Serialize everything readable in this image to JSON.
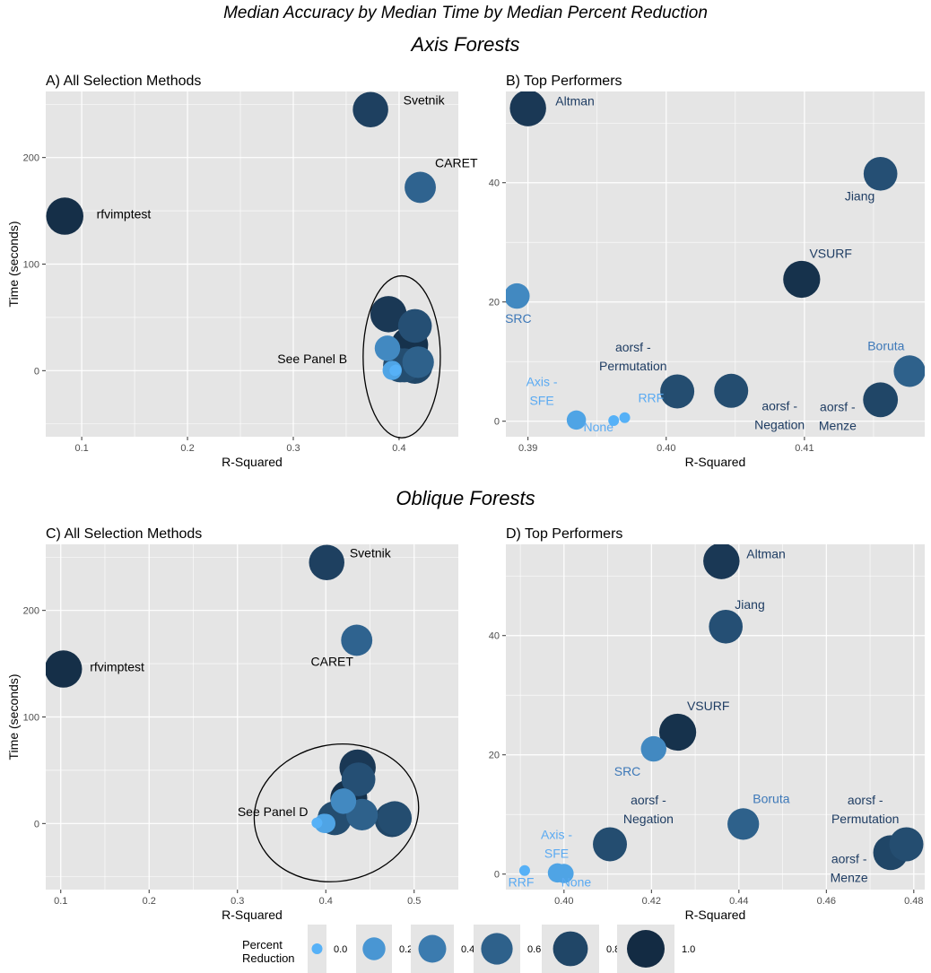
{
  "title": "Median Accuracy by Median Time by Median Percent Reduction",
  "sections": {
    "axis": "Axis Forests",
    "oblique": "Oblique Forests"
  },
  "legend": {
    "title_line1": "Percent",
    "title_line2": "Reduction",
    "labels": [
      "0.0",
      "0.2",
      "0.4",
      "0.6",
      "0.8",
      "1.0"
    ],
    "values": [
      0.0,
      0.2,
      0.4,
      0.6,
      0.8,
      1.0
    ]
  },
  "colors": {
    "panel_bg": "#e5e5e5",
    "grid": "#ffffff",
    "low": "#56b1f7",
    "high": "#132b43",
    "label_dark": "#1f3d63",
    "label_light": "#5aaaf2"
  },
  "chart_data": [
    {
      "id": "A",
      "type": "scatter",
      "title": "A) All Selection Methods",
      "xlabel": "R-Squared",
      "ylabel": "Time (seconds)",
      "xlim": [
        0.066,
        0.456
      ],
      "ylim": [
        -62,
        262
      ],
      "xticks": [
        0.1,
        0.2,
        0.3,
        0.4
      ],
      "xtick_labels": [
        "0.1",
        "0.2",
        "0.3",
        "0.4"
      ],
      "xminor": [
        0.15,
        0.25,
        0.35
      ],
      "yticks": [
        0,
        100,
        200
      ],
      "ytick_labels": [
        "0",
        "100",
        "200"
      ],
      "yminor": [
        -50,
        50,
        150,
        250
      ],
      "points": [
        {
          "name": "Svetnik",
          "x": 0.373,
          "y": 245,
          "pr": 0.84,
          "label": "Svetnik",
          "lx": 0.404,
          "ly": 250,
          "lc": "black"
        },
        {
          "name": "CARET",
          "x": 0.42,
          "y": 172,
          "pr": 0.58,
          "label": "CARET",
          "lx": 0.434,
          "ly": 191,
          "lc": "black"
        },
        {
          "name": "rfvimptest",
          "x": 0.084,
          "y": 145,
          "pr": 0.97,
          "label": "rfvimptest",
          "lx": 0.114,
          "ly": 143,
          "lc": "black"
        },
        {
          "name": "Altman",
          "x": 0.39,
          "y": 53,
          "pr": 0.9,
          "label": "",
          "lx": 0,
          "ly": 0,
          "lc": "black"
        },
        {
          "name": "Jiang",
          "x": 0.415,
          "y": 42,
          "pr": 0.73,
          "label": "",
          "lx": 0,
          "ly": 0,
          "lc": "black"
        },
        {
          "name": "VSURF",
          "x": 0.41,
          "y": 24,
          "pr": 0.95,
          "label": "",
          "lx": 0,
          "ly": 0,
          "lc": "black"
        },
        {
          "name": "SRC",
          "x": 0.389,
          "y": 21,
          "pr": 0.3,
          "label": "",
          "lx": 0,
          "ly": 0,
          "lc": "black"
        },
        {
          "name": "Boruta",
          "x": 0.418,
          "y": 8,
          "pr": 0.6,
          "label": "",
          "lx": 0,
          "ly": 0,
          "lc": "black"
        },
        {
          "name": "aorsf - Permutation",
          "x": 0.401,
          "y": 5,
          "pr": 0.75,
          "label": "",
          "lx": 0,
          "ly": 0,
          "lc": "black"
        },
        {
          "name": "aorsf - Negation",
          "x": 0.405,
          "y": 5,
          "pr": 0.75,
          "label": "",
          "lx": 0,
          "ly": 0,
          "lc": "black"
        },
        {
          "name": "aorsf - Menze",
          "x": 0.415,
          "y": 4,
          "pr": 0.8,
          "label": "",
          "lx": 0,
          "ly": 0,
          "lc": "black"
        },
        {
          "name": "Axis - SFE",
          "x": 0.3935,
          "y": 0.3,
          "pr": 0.1,
          "label": "",
          "lx": 0,
          "ly": 0,
          "lc": "black"
        },
        {
          "name": "None",
          "x": 0.396,
          "y": 0.1,
          "pr": 0.0,
          "label": "",
          "lx": 0,
          "ly": 0,
          "lc": "black"
        },
        {
          "name": "RRF",
          "x": 0.397,
          "y": 0.7,
          "pr": 0.0,
          "label": "",
          "lx": 0,
          "ly": 0,
          "lc": "black"
        }
      ],
      "annotations": [
        {
          "text": "See Panel B",
          "x": 0.318,
          "y": 7
        }
      ],
      "ellipse": {
        "cx": 0.4025,
        "cy": 13,
        "rx": 0.0365,
        "ry": 76
      }
    },
    {
      "id": "B",
      "type": "scatter",
      "title": "B) Top Performers",
      "xlabel": "R-Squared",
      "ylabel": "",
      "xlim": [
        0.3884,
        0.4187
      ],
      "ylim": [
        -2.6,
        55.3
      ],
      "xticks": [
        0.39,
        0.4,
        0.41
      ],
      "xtick_labels": [
        "0.39",
        "0.40",
        "0.41"
      ],
      "xminor": [
        0.395,
        0.405,
        0.415
      ],
      "yticks": [
        0,
        20,
        40
      ],
      "ytick_labels": [
        "0",
        "20",
        "40"
      ],
      "yminor": [
        10,
        30,
        50
      ],
      "points": [
        {
          "name": "Altman",
          "x": 0.39,
          "y": 52.5,
          "pr": 0.9,
          "label": "Altman",
          "lx": 0.3934,
          "ly": 53,
          "lc": "dark"
        },
        {
          "name": "Jiang",
          "x": 0.4155,
          "y": 41.5,
          "pr": 0.73,
          "label": "Jiang",
          "lx": 0.414,
          "ly": 37,
          "lc": "dark"
        },
        {
          "name": "VSURF",
          "x": 0.4098,
          "y": 23.8,
          "pr": 0.95,
          "label": "VSURF",
          "lx": 0.4119,
          "ly": 27.4,
          "lc": "dark"
        },
        {
          "name": "SRC",
          "x": 0.3892,
          "y": 21,
          "pr": 0.3,
          "label": "SRC",
          "lx": 0.3893,
          "ly": 16.5,
          "lc": "mid"
        },
        {
          "name": "aorsf - Permutation",
          "x": 0.4008,
          "y": 5,
          "pr": 0.75,
          "label_lines": [
            "aorsf -",
            "Permutation"
          ],
          "lx": 0.3976,
          "ly": 11.7,
          "lc": "dark"
        },
        {
          "name": "aorsf - Negation",
          "x": 0.4047,
          "y": 5.1,
          "pr": 0.75,
          "label_lines": [
            "aorsf -",
            "Negation"
          ],
          "lx": 0.4082,
          "ly": 1.8,
          "lc": "dark"
        },
        {
          "name": "Boruta",
          "x": 0.4176,
          "y": 8.4,
          "pr": 0.6,
          "label": "Boruta",
          "lx": 0.4159,
          "ly": 11.9,
          "lc": "mid"
        },
        {
          "name": "aorsf - Menze",
          "x": 0.4155,
          "y": 3.6,
          "pr": 0.8,
          "label_lines": [
            "aorsf -",
            "Menze"
          ],
          "lx": 0.4124,
          "ly": 1.7,
          "lc": "dark"
        },
        {
          "name": "Axis - SFE",
          "x": 0.3935,
          "y": 0.2,
          "pr": 0.1,
          "label_lines": [
            "Axis -",
            "SFE"
          ],
          "lx": 0.391,
          "ly": 5.9,
          "lc": "light"
        },
        {
          "name": "None",
          "x": 0.3962,
          "y": 0.1,
          "pr": 0.0,
          "label": "None",
          "lx": 0.3951,
          "ly": -1.7,
          "lc": "light"
        },
        {
          "name": "RRF",
          "x": 0.397,
          "y": 0.6,
          "pr": 0.0,
          "label": "RRF",
          "lx": 0.3989,
          "ly": 3.2,
          "lc": "light"
        }
      ]
    },
    {
      "id": "C",
      "type": "scatter",
      "title": "C) All Selection Methods",
      "xlabel": "R-Squared",
      "ylabel": "Time (seconds)",
      "xlim": [
        0.083,
        0.55
      ],
      "ylim": [
        -62,
        262
      ],
      "xticks": [
        0.1,
        0.2,
        0.3,
        0.4,
        0.5
      ],
      "xtick_labels": [
        "0.1",
        "0.2",
        "0.3",
        "0.4",
        "0.5"
      ],
      "xminor": [
        0.15,
        0.25,
        0.35,
        0.45
      ],
      "yticks": [
        0,
        100,
        200
      ],
      "ytick_labels": [
        "0",
        "100",
        "200"
      ],
      "yminor": [
        -50,
        50,
        150,
        250
      ],
      "points": [
        {
          "name": "Svetnik",
          "x": 0.401,
          "y": 245,
          "pr": 0.84,
          "label": "Svetnik",
          "lx": 0.427,
          "ly": 250,
          "lc": "black"
        },
        {
          "name": "CARET",
          "x": 0.435,
          "y": 172,
          "pr": 0.58,
          "label": "CARET",
          "lx": 0.383,
          "ly": 148,
          "lc": "black"
        },
        {
          "name": "rfvimptest",
          "x": 0.103,
          "y": 145,
          "pr": 0.97,
          "label": "rfvimptest",
          "lx": 0.133,
          "ly": 143,
          "lc": "black"
        },
        {
          "name": "Altman",
          "x": 0.436,
          "y": 52.5,
          "pr": 0.9,
          "label": "",
          "lx": 0,
          "ly": 0,
          "lc": "black"
        },
        {
          "name": "Jiang",
          "x": 0.437,
          "y": 41.5,
          "pr": 0.73,
          "label": "",
          "lx": 0,
          "ly": 0,
          "lc": "black"
        },
        {
          "name": "VSURF",
          "x": 0.426,
          "y": 23.8,
          "pr": 0.95,
          "label": "",
          "lx": 0,
          "ly": 0,
          "lc": "black"
        },
        {
          "name": "SRC",
          "x": 0.42,
          "y": 21,
          "pr": 0.3,
          "label": "",
          "lx": 0,
          "ly": 0,
          "lc": "black"
        },
        {
          "name": "Boruta",
          "x": 0.441,
          "y": 8.4,
          "pr": 0.6,
          "label": "",
          "lx": 0,
          "ly": 0,
          "lc": "black"
        },
        {
          "name": "aorsf - Negation",
          "x": 0.41,
          "y": 5,
          "pr": 0.75,
          "label": "",
          "lx": 0,
          "ly": 0,
          "lc": "black"
        },
        {
          "name": "aorsf - Permutation",
          "x": 0.478,
          "y": 5,
          "pr": 0.75,
          "label": "",
          "lx": 0,
          "ly": 0,
          "lc": "black"
        },
        {
          "name": "aorsf - Menze",
          "x": 0.475,
          "y": 3.6,
          "pr": 0.8,
          "label": "",
          "lx": 0,
          "ly": 0,
          "lc": "black"
        },
        {
          "name": "Axis - SFE",
          "x": 0.398,
          "y": 0.2,
          "pr": 0.1,
          "label": "",
          "lx": 0,
          "ly": 0,
          "lc": "black"
        },
        {
          "name": "None",
          "x": 0.4,
          "y": 0.1,
          "pr": 0.1,
          "label": "",
          "lx": 0,
          "ly": 0,
          "lc": "black"
        },
        {
          "name": "RRF",
          "x": 0.39,
          "y": 0.6,
          "pr": 0.0,
          "label": "",
          "lx": 0,
          "ly": 0,
          "lc": "black"
        }
      ],
      "annotations": [
        {
          "text": "See Panel D",
          "x": 0.34,
          "y": 7
        }
      ],
      "ellipse": {
        "cx": 0.412,
        "cy": 10,
        "rx": 0.0937,
        "ry": 64,
        "rot": -12
      }
    },
    {
      "id": "D",
      "type": "scatter",
      "title": "D) Top Performers",
      "xlabel": "R-Squared",
      "ylabel": "",
      "xlim": [
        0.3867,
        0.4825
      ],
      "ylim": [
        -2.6,
        55.3
      ],
      "xticks": [
        0.4,
        0.42,
        0.44,
        0.46,
        0.48
      ],
      "xtick_labels": [
        "0.40",
        "0.42",
        "0.44",
        "0.46",
        "0.48"
      ],
      "xminor": [
        0.39,
        0.41,
        0.43,
        0.45,
        0.47
      ],
      "yticks": [
        0,
        20,
        40
      ],
      "ytick_labels": [
        "0",
        "20",
        "40"
      ],
      "yminor": [
        10,
        30,
        50
      ],
      "points": [
        {
          "name": "Altman",
          "x": 0.436,
          "y": 52.5,
          "pr": 0.9,
          "label": "Altman",
          "lx": 0.4462,
          "ly": 53,
          "lc": "dark"
        },
        {
          "name": "Jiang",
          "x": 0.437,
          "y": 41.5,
          "pr": 0.73,
          "label": "Jiang",
          "lx": 0.4425,
          "ly": 44.5,
          "lc": "dark"
        },
        {
          "name": "VSURF",
          "x": 0.426,
          "y": 23.8,
          "pr": 0.95,
          "label": "VSURF",
          "lx": 0.433,
          "ly": 27.5,
          "lc": "dark"
        },
        {
          "name": "SRC",
          "x": 0.4205,
          "y": 21,
          "pr": 0.3,
          "label": "SRC",
          "lx": 0.4145,
          "ly": 16.5,
          "lc": "mid"
        },
        {
          "name": "aorsf - Negation",
          "x": 0.4105,
          "y": 5,
          "pr": 0.75,
          "label_lines": [
            "aorsf -",
            "Negation"
          ],
          "lx": 0.4193,
          "ly": 11.7,
          "lc": "dark"
        },
        {
          "name": "Boruta",
          "x": 0.441,
          "y": 8.4,
          "pr": 0.6,
          "label": "Boruta",
          "lx": 0.4474,
          "ly": 11.9,
          "lc": "mid"
        },
        {
          "name": "aorsf - Permutation",
          "x": 0.4783,
          "y": 5,
          "pr": 0.75,
          "label_lines": [
            "aorsf -",
            "Permutation"
          ],
          "lx": 0.4689,
          "ly": 11.7,
          "lc": "dark"
        },
        {
          "name": "aorsf - Menze",
          "x": 0.4747,
          "y": 3.6,
          "pr": 0.8,
          "label_lines": [
            "aorsf -",
            "Menze"
          ],
          "lx": 0.4652,
          "ly": 1.8,
          "lc": "dark"
        },
        {
          "name": "Axis - SFE",
          "x": 0.3985,
          "y": 0.2,
          "pr": 0.1,
          "label_lines": [
            "Axis -",
            "SFE"
          ],
          "lx": 0.3983,
          "ly": 5.9,
          "lc": "light"
        },
        {
          "name": "None",
          "x": 0.4,
          "y": 0.1,
          "pr": 0.1,
          "label": "None",
          "lx": 0.4028,
          "ly": -2.1,
          "lc": "light"
        },
        {
          "name": "RRF",
          "x": 0.391,
          "y": 0.6,
          "pr": 0.0,
          "label": "RRF",
          "lx": 0.3902,
          "ly": -2.1,
          "lc": "light"
        }
      ]
    }
  ]
}
